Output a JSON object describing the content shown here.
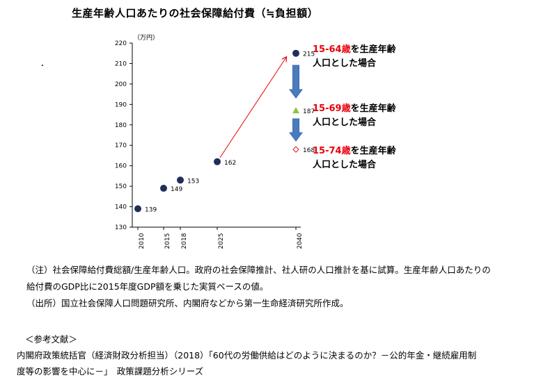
{
  "chart_data": {
    "type": "scatter",
    "title": "生産年齢人口あたりの社会保障給付費（≒負担額）",
    "ylabel": "（万円）",
    "ylim": [
      130,
      220
    ],
    "yticks": [
      130,
      140,
      150,
      160,
      170,
      180,
      190,
      200,
      210,
      220
    ],
    "x": [
      "2010",
      "2015",
      "2018",
      "2025",
      "2040"
    ],
    "series": [
      {
        "name": "15-64歳を生産年齢人口とした場合",
        "marker": "circle",
        "color": "#1f2f5a",
        "points": [
          {
            "x": "2010",
            "y": 139
          },
          {
            "x": "2015",
            "y": 149
          },
          {
            "x": "2018",
            "y": 153
          },
          {
            "x": "2025",
            "y": 162
          },
          {
            "x": "2040",
            "y": 215
          }
        ]
      },
      {
        "name": "15-69歳を生産年齢人口とした場合",
        "marker": "triangle",
        "color": "#8cc63f",
        "points": [
          {
            "x": "2040",
            "y": 187
          }
        ]
      },
      {
        "name": "15-74歳を生産年齢人口とした場合",
        "marker": "diamond",
        "color": "#d92020",
        "points": [
          {
            "x": "2040",
            "y": 168
          }
        ]
      }
    ],
    "annotations": [
      {
        "age": "15-64歳",
        "text1": "を生産年齢",
        "text2": "人口とした場合"
      },
      {
        "age": "15-69歳",
        "text1": "を生産年齢",
        "text2": "人口とした場合"
      },
      {
        "age": "15-74歳",
        "text1": "を生産年齢",
        "text2": "人口とした場合"
      }
    ],
    "grid": false,
    "arrow_color": "#e8000b",
    "down_arrow_color": "#4a7bbf"
  },
  "notes": {
    "note1_line1": "（注）社会保障給付費総額/生産年齢人口。政府の社会保障推計、社人研の人口推計を基に試算。生産年齢人口あたりの",
    "note1_line2": "給付費のGDP比に2015年度GDP額を乗じた実質ベースの値。",
    "source": "（出所）国立社会保障人口問題研究所、内閣府などから第一生命経済研究所作成。"
  },
  "references": {
    "heading": "＜参考文献＞",
    "line1": "内閣府政策統括官（経済財政分析担当）（2018）「60代の労働供給はどのように決まるのか？－公的年金・継続雇用制",
    "line2": "度等の影響を中心に－」　政策課題分析シリーズ"
  }
}
